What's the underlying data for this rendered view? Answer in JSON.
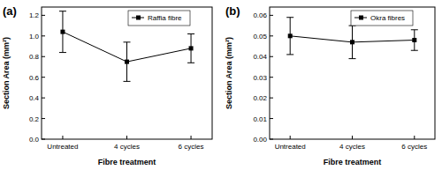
{
  "chart_data": [
    {
      "type": "line",
      "annotation": "(a)",
      "x_label": "Fibre treatment",
      "y_label": "Section Area (mm²)",
      "categories": [
        "Untreated",
        "4 cycles",
        "6 cycles"
      ],
      "series": [
        {
          "name": "Raffia fibre",
          "color": "#000000",
          "marker": "square",
          "values": [
            1.04,
            0.75,
            0.88
          ],
          "errors": [
            0.2,
            0.19,
            0.14
          ]
        }
      ],
      "ylim": [
        0,
        1.28
      ],
      "yticks": [
        {
          "value": 0,
          "label": "0.0"
        },
        0.2,
        0.4,
        0.6,
        0.8,
        {
          "value": 1,
          "label": "1.0"
        },
        1.2
      ],
      "legend": "upper right"
    },
    {
      "type": "line",
      "annotation": "(b)",
      "x_label": "Fibre treatment",
      "y_label": "Section Area (mm²)",
      "categories": [
        "Untreated",
        "4 cycles",
        "6 cycles"
      ],
      "series": [
        {
          "name": "Okra fibres",
          "color": "#000000",
          "marker": "square",
          "values": [
            0.05,
            0.047,
            0.048
          ],
          "errors": [
            0.009,
            0.008,
            0.005
          ]
        }
      ],
      "ylim": [
        0,
        0.064
      ],
      "yticks": [
        {
          "value": 0,
          "label": "0.00"
        },
        0.01,
        0.02,
        0.03,
        0.04,
        0.05,
        0.06
      ],
      "legend": "upper right"
    }
  ]
}
